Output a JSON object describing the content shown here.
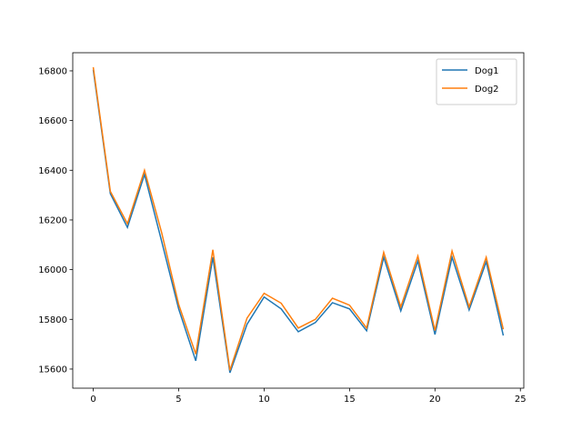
{
  "chart_data": {
    "type": "line",
    "x": [
      0,
      1,
      2,
      3,
      4,
      5,
      6,
      7,
      8,
      9,
      10,
      11,
      12,
      13,
      14,
      15,
      16,
      17,
      18,
      19,
      20,
      21,
      22,
      23,
      24
    ],
    "series": [
      {
        "name": "Dog1",
        "color": "#1f77b4",
        "values": [
          16805,
          16306,
          16170,
          16383,
          16115,
          15842,
          15633,
          16050,
          15585,
          15780,
          15890,
          15842,
          15750,
          15787,
          15867,
          15842,
          15754,
          16050,
          15834,
          16035,
          15739,
          16050,
          15838,
          16032,
          15735
        ]
      },
      {
        "name": "Dog2",
        "color": "#ff7f0e",
        "values": [
          16815,
          16315,
          16185,
          16400,
          16150,
          15860,
          15660,
          16080,
          15595,
          15805,
          15905,
          15865,
          15765,
          15800,
          15885,
          15857,
          15765,
          16070,
          15850,
          16055,
          15755,
          16075,
          15850,
          16050,
          15760
        ]
      }
    ],
    "xlim": [
      -1.2,
      25.2
    ],
    "ylim": [
      15523,
      16873
    ],
    "xticks": [
      0,
      5,
      10,
      15,
      20,
      25
    ],
    "yticks": [
      15600,
      15800,
      16000,
      16200,
      16400,
      16600,
      16800
    ],
    "legend": "upper right"
  }
}
